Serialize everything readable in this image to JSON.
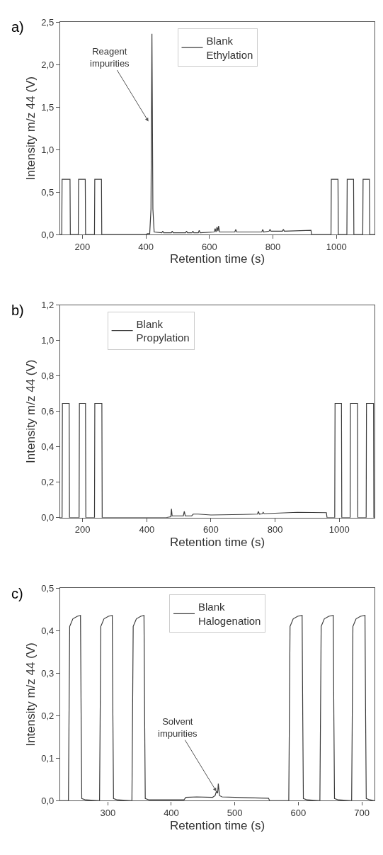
{
  "chart_data": [
    {
      "type": "line",
      "xlabel": "Retention time (s)",
      "ylabel": "Intensity m/z 44 (V)",
      "legend": "top",
      "xlim": [
        130,
        1120
      ],
      "xticks": [
        200,
        400,
        600,
        800,
        1000
      ],
      "ylim": [
        0,
        2.5
      ],
      "yticks": [
        {
          "value": 0,
          "label": "0,0"
        },
        {
          "value": 0.5,
          "label": "0,5"
        },
        {
          "value": 1,
          "label": "1,0"
        },
        {
          "value": 1.5,
          "label": "1,5"
        },
        {
          "value": 2,
          "label": "2,0"
        },
        {
          "value": 2.5,
          "label": "2,5"
        }
      ],
      "annotations": [
        "a)",
        {
          "text": "Reagent\nimpurities",
          "x": 408,
          "y": 1.33
        }
      ],
      "series": [
        {
          "name": "Blank\nEthylation",
          "color": "#3a3a3a",
          "x": [
            130,
            135,
            136,
            161,
            162,
            187,
            188,
            209,
            210,
            238,
            239,
            260,
            261,
            400,
            405,
            412,
            416,
            419,
            422,
            426,
            450,
            453,
            456,
            480,
            483,
            486,
            525,
            528,
            531,
            545,
            548,
            551,
            565,
            568,
            571,
            615,
            618,
            621,
            624,
            627,
            629,
            632,
            680,
            683,
            686,
            765,
            768,
            771,
            788,
            791,
            794,
            830,
            833,
            836,
            920,
            922,
            983,
            984,
            1005,
            1006,
            1033,
            1034,
            1054,
            1055,
            1083,
            1084,
            1104,
            1105,
            1120
          ],
          "values": [
            0,
            0,
            0.65,
            0.65,
            0,
            0,
            0.65,
            0.65,
            0,
            0,
            0.65,
            0.65,
            0,
            0,
            0.01,
            0.01,
            0.3,
            2.36,
            0.3,
            0.03,
            0.02,
            0.04,
            0.02,
            0.02,
            0.04,
            0.02,
            0.02,
            0.04,
            0.02,
            0.02,
            0.04,
            0.02,
            0.02,
            0.05,
            0.02,
            0.03,
            0.07,
            0.03,
            0.09,
            0.04,
            0.1,
            0.03,
            0.03,
            0.06,
            0.03,
            0.03,
            0.06,
            0.03,
            0.04,
            0.06,
            0.04,
            0.04,
            0.06,
            0.04,
            0.05,
            0,
            0,
            0.65,
            0.65,
            0,
            0,
            0.65,
            0.65,
            0,
            0,
            0.65,
            0.65,
            0,
            0
          ]
        }
      ]
    },
    {
      "type": "line",
      "xlabel": "Retention time (s)",
      "ylabel": "Intensity m/z 44 (V)",
      "legend": "top left",
      "xlim": [
        130,
        1110
      ],
      "xticks": [
        200,
        400,
        600,
        800,
        1000
      ],
      "ylim": [
        0,
        1.2
      ],
      "yticks": [
        {
          "value": 0,
          "label": "0,0"
        },
        {
          "value": 0.2,
          "label": "0,2"
        },
        {
          "value": 0.4,
          "label": "0,4"
        },
        {
          "value": 0.6,
          "label": "0,6"
        },
        {
          "value": 0.8,
          "label": "0,8"
        },
        {
          "value": 1,
          "label": "1,0"
        },
        {
          "value": 1.2,
          "label": "1,2"
        }
      ],
      "annotations": [
        "b)"
      ],
      "series": [
        {
          "name": "Blank\nPropylation",
          "color": "#3a3a3a",
          "x": [
            130,
            136,
            137,
            158,
            159,
            189,
            190,
            209,
            210,
            237,
            238,
            260,
            261,
            460,
            475,
            477,
            479,
            514,
            517,
            520,
            540,
            545,
            560,
            600,
            700,
            745,
            748,
            751,
            760,
            763,
            766,
            800,
            870,
            960,
            962,
            986,
            987,
            1007,
            1008,
            1034,
            1035,
            1057,
            1058,
            1084,
            1085,
            1107,
            1108,
            1110
          ],
          "values": [
            0,
            0,
            0.645,
            0.645,
            0,
            0,
            0.645,
            0.645,
            0,
            0,
            0.645,
            0.645,
            0,
            0,
            0.005,
            0.05,
            0.01,
            0.01,
            0.035,
            0.01,
            0.01,
            0.02,
            0.02,
            0.015,
            0.018,
            0.02,
            0.035,
            0.02,
            0.022,
            0.03,
            0.022,
            0.025,
            0.03,
            0.028,
            0,
            0,
            0.645,
            0.645,
            0,
            0,
            0.645,
            0.645,
            0,
            0,
            0.645,
            0.645,
            0,
            0
          ]
        }
      ]
    },
    {
      "type": "line",
      "xlabel": "Retention time (s)",
      "ylabel": "Intensity m/z 44 (V)",
      "legend": "top",
      "xlim": [
        225,
        720
      ],
      "xticks": [
        300,
        400,
        500,
        600,
        700
      ],
      "ylim": [
        0,
        0.5
      ],
      "yticks": [
        {
          "value": 0,
          "label": "0,0"
        },
        {
          "value": 0.1,
          "label": "0,1"
        },
        {
          "value": 0.2,
          "label": "0,2"
        },
        {
          "value": 0.3,
          "label": "0,3"
        },
        {
          "value": 0.4,
          "label": "0,4"
        },
        {
          "value": 0.5,
          "label": "0,5"
        }
      ],
      "annotations": [
        "c)",
        {
          "text": "Solvent\nimpurities",
          "x": 471,
          "y": 0.022
        }
      ],
      "series": [
        {
          "name": "Blank\nHalogenation",
          "color": "#3a3a3a",
          "x": [
            225,
            238,
            240,
            245,
            252,
            257,
            258,
            259,
            265,
            287,
            289,
            294,
            301,
            307,
            308,
            309,
            315,
            338,
            340,
            345,
            352,
            357,
            358,
            359,
            365,
            420,
            423,
            440,
            465,
            469,
            471,
            473,
            474,
            476,
            480,
            520,
            553,
            555,
            585,
            587,
            592,
            599,
            606,
            607,
            608,
            614,
            634,
            636,
            641,
            648,
            655,
            656,
            657,
            663,
            684,
            686,
            691,
            698,
            705,
            706,
            707,
            713,
            720
          ],
          "values": [
            0,
            0,
            0.41,
            0.428,
            0.434,
            0.436,
            0.2,
            0.005,
            0.002,
            0,
            0.41,
            0.428,
            0.434,
            0.436,
            0.2,
            0.005,
            0.002,
            0,
            0.41,
            0.428,
            0.434,
            0.436,
            0.2,
            0.005,
            0.002,
            0.002,
            0.008,
            0.009,
            0.008,
            0.012,
            0.022,
            0.018,
            0.04,
            0.012,
            0.009,
            0.007,
            0.006,
            0,
            0,
            0.41,
            0.428,
            0.434,
            0.436,
            0.2,
            0.005,
            0.002,
            0,
            0.41,
            0.428,
            0.434,
            0.436,
            0.2,
            0.005,
            0.002,
            0,
            0.41,
            0.428,
            0.434,
            0.436,
            0.2,
            0.005,
            0.002,
            0
          ]
        }
      ]
    }
  ]
}
